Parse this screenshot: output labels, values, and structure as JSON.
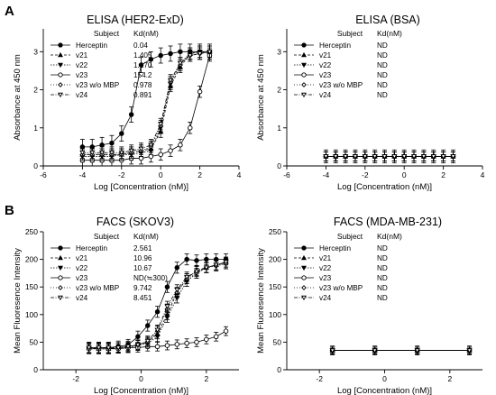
{
  "panel_letters": [
    "A",
    "B"
  ],
  "colors": {
    "ink": "#000000",
    "background": "#ffffff"
  },
  "chart_data": [
    {
      "type": "scatter",
      "panel": "A",
      "title": "ELISA (HER2-ExD)",
      "xlabel": "Log [Concentration (nM)]",
      "ylabel": "Absorbance at 450 nm",
      "xlim": [
        -6,
        4
      ],
      "ylim": [
        0,
        3.6
      ],
      "xticks": [
        "-6",
        "-4",
        "-2",
        "0",
        "2",
        "4"
      ],
      "yticks": [
        "0",
        "1",
        "2",
        "3"
      ],
      "legend": {
        "position": "top-left",
        "header": [
          "Subject",
          "Kd(nM)"
        ]
      },
      "x": [
        -4.0,
        -3.5,
        -3.0,
        -2.5,
        -2.0,
        -1.5,
        -1.0,
        -0.5,
        0.0,
        0.5,
        1.0,
        1.5,
        2.0,
        2.5
      ],
      "series": [
        {
          "name": "Herceptin",
          "kd": "0.04",
          "marker": "filled-circle",
          "values": [
            0.5,
            0.5,
            0.55,
            0.6,
            0.85,
            1.35,
            2.65,
            2.8,
            2.9,
            2.95,
            3.0,
            3.0,
            3.0,
            3.0
          ],
          "err": 0.2
        },
        {
          "name": "v21",
          "kd": "1.405",
          "marker": "filled-triangle-up",
          "values": [
            0.3,
            0.3,
            0.3,
            0.3,
            0.3,
            0.35,
            0.4,
            0.45,
            0.9,
            2.1,
            2.6,
            2.95,
            3.0,
            3.0
          ],
          "err": 0.15
        },
        {
          "name": "v22",
          "kd": "1.170",
          "marker": "filled-triangle-down",
          "values": [
            0.25,
            0.25,
            0.25,
            0.25,
            0.3,
            0.3,
            0.35,
            0.4,
            1.0,
            2.15,
            2.7,
            2.95,
            3.0,
            2.95
          ],
          "err": 0.15
        },
        {
          "name": "v23",
          "kd": "154.2",
          "marker": "open-circle",
          "values": [
            0.15,
            0.15,
            0.15,
            0.15,
            0.15,
            0.2,
            0.2,
            0.25,
            0.3,
            0.4,
            0.55,
            1.0,
            1.95,
            2.9
          ],
          "err": 0.15
        },
        {
          "name": "v23 w/o MBP",
          "kd": "0.978",
          "marker": "open-diamond",
          "values": [
            0.3,
            0.3,
            0.3,
            0.3,
            0.3,
            0.35,
            0.4,
            0.5,
            1.05,
            2.2,
            2.65,
            2.9,
            2.95,
            3.0
          ],
          "err": 0.15
        },
        {
          "name": "v24",
          "kd": "0.891",
          "marker": "open-triangle-down",
          "values": [
            0.35,
            0.35,
            0.35,
            0.35,
            0.35,
            0.4,
            0.45,
            0.55,
            1.1,
            2.25,
            2.7,
            2.9,
            2.95,
            3.0
          ],
          "err": 0.15
        }
      ]
    },
    {
      "type": "scatter",
      "panel": "A",
      "title": "ELISA (BSA)",
      "xlabel": "Log [Concentration (nM)]",
      "ylabel": "Absorbance at 450 nm",
      "xlim": [
        -6,
        4
      ],
      "ylim": [
        0,
        3.6
      ],
      "xticks": [
        "-6",
        "-4",
        "-2",
        "0",
        "2",
        "4"
      ],
      "yticks": [
        "0",
        "1",
        "2",
        "3"
      ],
      "legend": {
        "position": "top-left",
        "header": [
          "Subject",
          "Kd(nM)"
        ]
      },
      "x": [
        -4.0,
        -3.5,
        -3.0,
        -2.5,
        -2.0,
        -1.5,
        -1.0,
        -0.5,
        0.0,
        0.5,
        1.0,
        1.5,
        2.0,
        2.5
      ],
      "series": [
        {
          "name": "Herceptin",
          "kd": "ND",
          "marker": "filled-circle",
          "constant": 0.25,
          "err": 0.17
        },
        {
          "name": "v21",
          "kd": "ND",
          "marker": "filled-triangle-up",
          "constant": 0.25,
          "err": 0.12
        },
        {
          "name": "v22",
          "kd": "ND",
          "marker": "filled-triangle-down",
          "constant": 0.25,
          "err": 0.12
        },
        {
          "name": "v23",
          "kd": "ND",
          "marker": "open-circle",
          "constant": 0.25,
          "err": 0.12
        },
        {
          "name": "v23 w/o MBP",
          "kd": "ND",
          "marker": "open-diamond",
          "constant": 0.25,
          "err": 0.12
        },
        {
          "name": "v24",
          "kd": "ND",
          "marker": "open-triangle-down",
          "constant": 0.25,
          "err": 0.12
        }
      ]
    },
    {
      "type": "scatter",
      "panel": "B",
      "title": "FACS (SKOV3)",
      "xlabel": "Log [Concentration (nM)]",
      "ylabel": "Mean Fluoresence Intensity",
      "xlim": [
        -3,
        3
      ],
      "ylim": [
        0,
        250
      ],
      "xticks": [
        "-2",
        "0",
        "2"
      ],
      "yticks": [
        "0",
        "50",
        "100",
        "150",
        "200",
        "250"
      ],
      "legend": {
        "position": "top-left",
        "header": [
          "Subject",
          "Kd(nM)"
        ]
      },
      "x": [
        -1.6,
        -1.3,
        -1.0,
        -0.7,
        -0.4,
        -0.1,
        0.2,
        0.5,
        0.8,
        1.1,
        1.4,
        1.7,
        2.0,
        2.3,
        2.6
      ],
      "series": [
        {
          "name": "Herceptin",
          "kd": "2.561",
          "marker": "filled-circle",
          "values": [
            40,
            40,
            40,
            42,
            45,
            60,
            80,
            105,
            150,
            185,
            200,
            198,
            200,
            200,
            200
          ],
          "err": 10
        },
        {
          "name": "v21",
          "kd": "10.96",
          "marker": "filled-triangle-up",
          "values": [
            40,
            38,
            38,
            40,
            42,
            45,
            50,
            65,
            100,
            140,
            165,
            180,
            185,
            190,
            195
          ],
          "err": 9
        },
        {
          "name": "v22",
          "kd": "10.67",
          "marker": "filled-triangle-down",
          "values": [
            38,
            38,
            38,
            40,
            40,
            44,
            48,
            60,
            95,
            130,
            160,
            175,
            185,
            190,
            192
          ],
          "err": 9
        },
        {
          "name": "v23",
          "kd": "ND(≒300)",
          "marker": "open-circle",
          "values": [
            38,
            38,
            38,
            38,
            40,
            40,
            42,
            42,
            44,
            46,
            48,
            50,
            55,
            60,
            70
          ],
          "err": 8
        },
        {
          "name": "v23 w/o MBP",
          "kd": "9.742",
          "marker": "open-diamond",
          "values": [
            40,
            40,
            40,
            40,
            42,
            45,
            50,
            70,
            110,
            140,
            165,
            175,
            185,
            188,
            192
          ],
          "err": 9
        },
        {
          "name": "v24",
          "kd": "8.451",
          "marker": "open-triangle-down",
          "values": [
            40,
            40,
            40,
            40,
            42,
            45,
            52,
            72,
            115,
            145,
            168,
            178,
            185,
            190,
            195
          ],
          "err": 9
        }
      ]
    },
    {
      "type": "scatter",
      "panel": "B",
      "title": "FACS (MDA-MB-231)",
      "xlabel": "Log [Concentration (nM)]",
      "ylabel": "Mean Fluoresence Intensity",
      "xlim": [
        -3,
        3
      ],
      "ylim": [
        0,
        250
      ],
      "xticks": [
        "-2",
        "0",
        "2"
      ],
      "yticks": [
        "0",
        "50",
        "100",
        "150",
        "200",
        "250"
      ],
      "legend": {
        "position": "top-left",
        "header": [
          "Subject",
          "Kd(nM)"
        ]
      },
      "x": [
        -1.6,
        -0.3,
        1.0,
        2.6
      ],
      "series": [
        {
          "name": "Herceptin",
          "kd": "ND",
          "marker": "filled-circle",
          "constant": 35,
          "err": 8
        },
        {
          "name": "v21",
          "kd": "ND",
          "marker": "filled-triangle-up",
          "constant": 35,
          "err": 6
        },
        {
          "name": "v22",
          "kd": "ND",
          "marker": "filled-triangle-down",
          "constant": 35,
          "err": 6
        },
        {
          "name": "v23",
          "kd": "ND",
          "marker": "open-circle",
          "constant": 35,
          "err": 6
        },
        {
          "name": "v23 w/o MBP",
          "kd": "ND",
          "marker": "open-diamond",
          "constant": 35,
          "err": 6
        },
        {
          "name": "v24",
          "kd": "ND",
          "marker": "open-triangle-down",
          "constant": 35,
          "err": 6
        }
      ]
    }
  ]
}
